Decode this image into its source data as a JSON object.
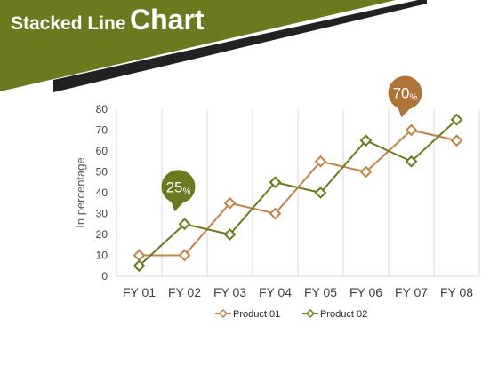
{
  "slide": {
    "title_part1": "Stacked Line",
    "title_part2": "Chart",
    "colors": {
      "banner_olive": "#6b7a1e",
      "banner_dark": "#222222",
      "product01": "#c0834a",
      "product02": "#6b7a1e",
      "callout_bronze": "#b0733a"
    }
  },
  "chart_data": {
    "type": "line",
    "categories": [
      "FY 01",
      "FY 02",
      "FY 03",
      "FY 04",
      "FY 05",
      "FY 06",
      "FY 07",
      "FY 08"
    ],
    "series": [
      {
        "name": "Product 01",
        "values": [
          10,
          10,
          35,
          30,
          55,
          50,
          70,
          65
        ],
        "color": "#c0834a"
      },
      {
        "name": "Product 02",
        "values": [
          5,
          25,
          20,
          45,
          40,
          65,
          55,
          75
        ],
        "color": "#6b7a1e"
      }
    ],
    "ylabel": "In percentage",
    "ylim": [
      0,
      80
    ],
    "yticks": [
      0,
      10,
      20,
      30,
      40,
      50,
      60,
      70,
      80
    ],
    "grid": "vertical",
    "legend": "bottom",
    "callouts": [
      {
        "value": "25",
        "unit": "%",
        "color": "#6b7a1e",
        "category": "FY 02",
        "series": "Product 02"
      },
      {
        "value": "70",
        "unit": "%",
        "color": "#b0733a",
        "category": "FY 07",
        "series": "Product 01"
      }
    ]
  }
}
